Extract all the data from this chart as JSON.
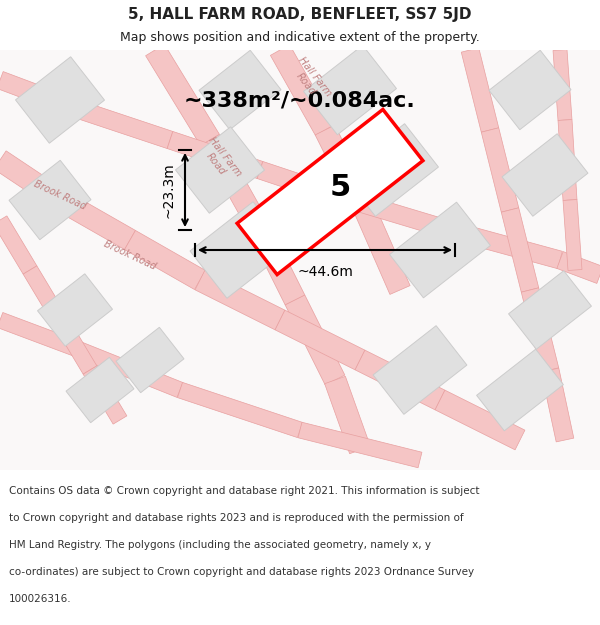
{
  "title": "5, HALL FARM ROAD, BENFLEET, SS7 5JD",
  "subtitle": "Map shows position and indicative extent of the property.",
  "area_text": "~338m²/~0.084ac.",
  "plot_number": "5",
  "dim_width": "~44.6m",
  "dim_height": "~23.3m",
  "footer": "Contains OS data © Crown copyright and database right 2021. This information is subject to Crown copyright and database rights 2023 and is reproduced with the permission of HM Land Registry. The polygons (including the associated geometry, namely x, y co-ordinates) are subject to Crown copyright and database rights 2023 Ordnance Survey 100026316.",
  "bg_color": "#f5f0f0",
  "map_bg": "#ffffff",
  "road_color": "#f5c5c5",
  "road_border": "#e8a0a0",
  "building_fill": "#e0e0e0",
  "building_stroke": "#cccccc",
  "plot_fill": "#ffffff",
  "plot_stroke": "#ff0000",
  "text_color": "#222222",
  "footer_color": "#333333",
  "header_bg": "#ffffff",
  "footer_bg": "#f5f0f0"
}
